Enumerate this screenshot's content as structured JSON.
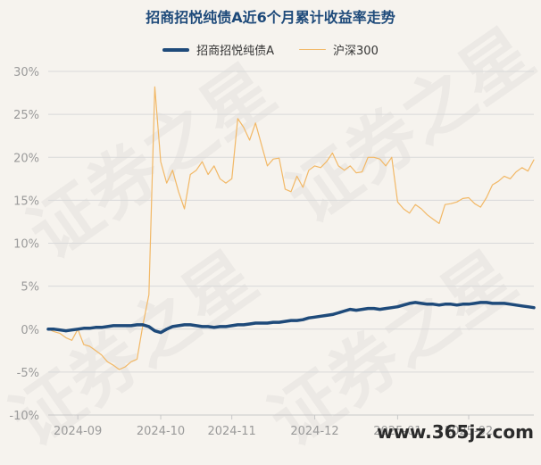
{
  "title": "招商招悦纯债A近6个月累计收益率走势",
  "watermark": "证券之星",
  "site_mark": "www.365jz.com",
  "chart_data": {
    "type": "line",
    "title": "招商招悦纯债A近6个月累计收益率走势",
    "ylim": [
      -10,
      30
    ],
    "y_ticks": [
      30,
      25,
      20,
      15,
      10,
      5,
      0,
      -5,
      -10
    ],
    "y_tick_labels": [
      "30%",
      "25%",
      "20%",
      "15%",
      "10%",
      "5%",
      "0%",
      "-5%",
      "-10%"
    ],
    "x_ticks": [
      {
        "index": 5,
        "label": "2024-09"
      },
      {
        "index": 19,
        "label": "2024-10"
      },
      {
        "index": 31,
        "label": "2024-11"
      },
      {
        "index": 45,
        "label": "2024-12"
      },
      {
        "index": 59,
        "label": "2025-01"
      },
      {
        "index": 71,
        "label": "2025-02"
      }
    ],
    "grid": true,
    "legend_position": "top-center",
    "series": [
      {
        "name": "招商招悦纯债A",
        "color": "#1e4a7a",
        "values": [
          0.0,
          0.0,
          -0.1,
          -0.2,
          -0.1,
          0.0,
          0.1,
          0.1,
          0.2,
          0.2,
          0.3,
          0.4,
          0.4,
          0.4,
          0.4,
          0.5,
          0.5,
          0.3,
          -0.2,
          -0.4,
          0.0,
          0.3,
          0.4,
          0.5,
          0.5,
          0.4,
          0.3,
          0.3,
          0.2,
          0.3,
          0.3,
          0.4,
          0.5,
          0.5,
          0.6,
          0.7,
          0.7,
          0.7,
          0.8,
          0.8,
          0.9,
          1.0,
          1.0,
          1.1,
          1.3,
          1.4,
          1.5,
          1.6,
          1.7,
          1.9,
          2.1,
          2.3,
          2.2,
          2.3,
          2.4,
          2.4,
          2.3,
          2.4,
          2.5,
          2.6,
          2.8,
          3.0,
          3.1,
          3.0,
          2.9,
          2.9,
          2.8,
          2.9,
          2.9,
          2.8,
          2.9,
          2.9,
          3.0,
          3.1,
          3.1,
          3.0,
          3.0,
          3.0,
          2.9,
          2.8,
          2.7,
          2.6,
          2.5
        ]
      },
      {
        "name": "沪深300",
        "color": "#f2b866",
        "values": [
          0.0,
          -0.3,
          -0.5,
          -1.0,
          -1.3,
          0.0,
          -1.8,
          -2.0,
          -2.5,
          -3.0,
          -3.8,
          -4.2,
          -4.7,
          -4.4,
          -3.8,
          -3.5,
          0.5,
          4.0,
          28.2,
          19.5,
          17.0,
          18.5,
          16.0,
          14.0,
          18.0,
          18.5,
          19.5,
          18.0,
          19.0,
          17.5,
          17.0,
          17.5,
          24.5,
          23.5,
          22.0,
          24.0,
          21.5,
          19.0,
          19.8,
          19.9,
          16.3,
          16.0,
          17.8,
          16.5,
          18.5,
          19.0,
          18.8,
          19.5,
          20.5,
          19.0,
          18.5,
          19.0,
          18.2,
          18.3,
          20.0,
          20.0,
          19.8,
          19.0,
          20.0,
          14.8,
          14.0,
          13.5,
          14.5,
          14.0,
          13.3,
          12.8,
          12.3,
          14.5,
          14.6,
          14.8,
          15.2,
          15.3,
          14.6,
          14.2,
          15.3,
          16.8,
          17.2,
          17.8,
          17.5,
          18.3,
          18.8,
          18.4,
          19.7
        ]
      }
    ]
  }
}
